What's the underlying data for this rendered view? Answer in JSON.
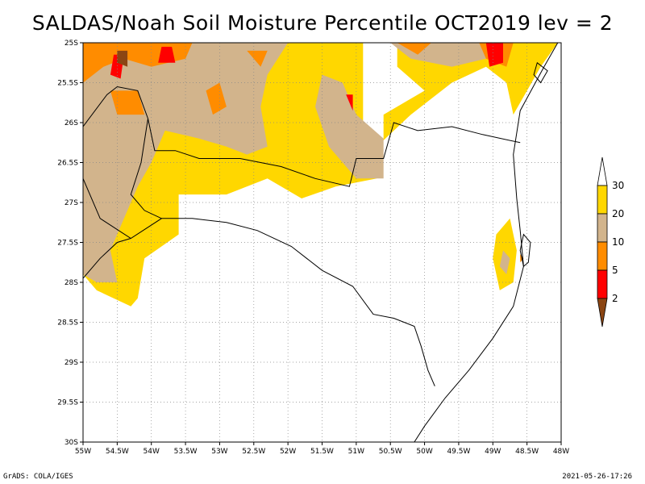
{
  "title": "SALDAS/Noah Soil Moisture Percentile OCT2019 lev = 2",
  "footer_left": "GrADS: COLA/IGES",
  "footer_right": "2021-05-26-17:26",
  "axes": {
    "lon_min": -55,
    "lon_max": -48,
    "lat_min": -30,
    "lat_max": -25,
    "x_ticks": [
      {
        "v": -55,
        "label": "55W"
      },
      {
        "v": -54.5,
        "label": "54.5W"
      },
      {
        "v": -54,
        "label": "54W"
      },
      {
        "v": -53.5,
        "label": "53.5W"
      },
      {
        "v": -53,
        "label": "53W"
      },
      {
        "v": -52.5,
        "label": "52.5W"
      },
      {
        "v": -52,
        "label": "52W"
      },
      {
        "v": -51.5,
        "label": "51.5W"
      },
      {
        "v": -51,
        "label": "51W"
      },
      {
        "v": -50.5,
        "label": "50.5W"
      },
      {
        "v": -50,
        "label": "50W"
      },
      {
        "v": -49.5,
        "label": "49.5W"
      },
      {
        "v": -49,
        "label": "49W"
      },
      {
        "v": -48.5,
        "label": "48.5W"
      },
      {
        "v": -48,
        "label": "48W"
      }
    ],
    "y_ticks": [
      {
        "v": -25,
        "label": "25S"
      },
      {
        "v": -25.5,
        "label": "25.5S"
      },
      {
        "v": -26,
        "label": "26S"
      },
      {
        "v": -26.5,
        "label": "26.5S"
      },
      {
        "v": -27,
        "label": "27S"
      },
      {
        "v": -27.5,
        "label": "27.5S"
      },
      {
        "v": -28,
        "label": "28S"
      },
      {
        "v": -28.5,
        "label": "28.5S"
      },
      {
        "v": -29,
        "label": "29S"
      },
      {
        "v": -29.5,
        "label": "29.5S"
      },
      {
        "v": -30,
        "label": "30S"
      }
    ],
    "grid": "dotted"
  },
  "legend": {
    "placement": "right",
    "bins": [
      {
        "label": "2",
        "color": "#8b4513"
      },
      {
        "label": "5",
        "color": "#ff0000"
      },
      {
        "label": "10",
        "color": "#ff8c00"
      },
      {
        "label": "20",
        "color": "#d2b48c"
      },
      {
        "label": "30",
        "color": "#ffd700"
      },
      {
        "label": "",
        "color": "#ffffff"
      }
    ]
  },
  "colors": {
    "p20_30": "#ffd700",
    "p10_20": "#d2b48c",
    "p5_10": "#ff8c00",
    "p2_5": "#ff0000",
    "lt2": "#8b4513",
    "boundary": "#000000"
  },
  "regions": [
    {
      "cls": "p20_30",
      "pts": [
        [
          -55,
          -25
        ],
        [
          -50.9,
          -25
        ],
        [
          -50.9,
          -26.2
        ],
        [
          -50.6,
          -26.2
        ],
        [
          -50.6,
          -25.9
        ],
        [
          -50,
          -25.6
        ],
        [
          -50.4,
          -25.3
        ],
        [
          -50.4,
          -25
        ],
        [
          -48.05,
          -25
        ],
        [
          -48.3,
          -25.3
        ],
        [
          -48.7,
          -25.9
        ],
        [
          -48.8,
          -25.5
        ],
        [
          -49.1,
          -25.3
        ],
        [
          -49.6,
          -25.5
        ],
        [
          -50.2,
          -25.9
        ],
        [
          -50.7,
          -26.3
        ],
        [
          -50.7,
          -26.7
        ],
        [
          -51.3,
          -26.8
        ],
        [
          -51.8,
          -26.95
        ],
        [
          -52.3,
          -26.7
        ],
        [
          -52.9,
          -26.9
        ],
        [
          -53.2,
          -26.9
        ],
        [
          -53.6,
          -26.9
        ],
        [
          -53.6,
          -27.4
        ],
        [
          -54.1,
          -27.7
        ],
        [
          -54.2,
          -28.2
        ],
        [
          -54.3,
          -28.3
        ],
        [
          -54.8,
          -28.1
        ],
        [
          -55,
          -27.9
        ]
      ]
    },
    {
      "cls": "p20_30",
      "pts": [
        [
          -48.95,
          -27.4
        ],
        [
          -48.75,
          -27.2
        ],
        [
          -48.65,
          -27.6
        ],
        [
          -48.7,
          -28
        ],
        [
          -48.9,
          -28.1
        ],
        [
          -49.0,
          -27.7
        ]
      ]
    },
    {
      "cls": "p10_20",
      "pts": [
        [
          -55,
          -25
        ],
        [
          -52.0,
          -25
        ],
        [
          -52.3,
          -25.4
        ],
        [
          -52.4,
          -25.8
        ],
        [
          -52.3,
          -26.3
        ],
        [
          -52.6,
          -26.4
        ],
        [
          -52.9,
          -26.3
        ],
        [
          -53.3,
          -26.2
        ],
        [
          -53.8,
          -26.1
        ],
        [
          -54.0,
          -26.5
        ],
        [
          -54.2,
          -26.8
        ],
        [
          -54.4,
          -27.2
        ],
        [
          -54.6,
          -27.6
        ],
        [
          -54.5,
          -28
        ],
        [
          -54.8,
          -28
        ],
        [
          -55,
          -27.9
        ]
      ]
    },
    {
      "cls": "p10_20",
      "pts": [
        [
          -51.5,
          -25.4
        ],
        [
          -51.2,
          -25.5
        ],
        [
          -51.0,
          -25.9
        ],
        [
          -50.6,
          -26.2
        ],
        [
          -50.6,
          -26.7
        ],
        [
          -51.0,
          -26.7
        ],
        [
          -51.4,
          -26.3
        ],
        [
          -51.6,
          -25.8
        ]
      ]
    },
    {
      "cls": "p10_20",
      "pts": [
        [
          -50.5,
          -25
        ],
        [
          -48.9,
          -25
        ],
        [
          -49.1,
          -25.2
        ],
        [
          -49.6,
          -25.3
        ],
        [
          -50.2,
          -25.2
        ]
      ]
    },
    {
      "cls": "p10_20",
      "pts": [
        [
          -48.85,
          -27.6
        ],
        [
          -48.75,
          -27.7
        ],
        [
          -48.8,
          -27.9
        ],
        [
          -48.9,
          -27.8
        ]
      ]
    },
    {
      "cls": "p5_10",
      "pts": [
        [
          -55,
          -25
        ],
        [
          -53.4,
          -25
        ],
        [
          -53.5,
          -25.2
        ],
        [
          -54.0,
          -25.3
        ],
        [
          -54.4,
          -25.2
        ],
        [
          -54.7,
          -25.3
        ],
        [
          -55,
          -25.5
        ]
      ]
    },
    {
      "cls": "p5_10",
      "pts": [
        [
          -54.6,
          -25.6
        ],
        [
          -54.2,
          -25.6
        ],
        [
          -54.1,
          -25.9
        ],
        [
          -54.5,
          -25.9
        ]
      ]
    },
    {
      "cls": "p5_10",
      "pts": [
        [
          -53.2,
          -25.6
        ],
        [
          -53.0,
          -25.5
        ],
        [
          -52.9,
          -25.8
        ],
        [
          -53.1,
          -25.9
        ]
      ]
    },
    {
      "cls": "p5_10",
      "pts": [
        [
          -52.6,
          -25.1
        ],
        [
          -52.3,
          -25.1
        ],
        [
          -52.4,
          -25.3
        ]
      ]
    },
    {
      "cls": "p5_10",
      "pts": [
        [
          -50.4,
          -25
        ],
        [
          -49.9,
          -25
        ],
        [
          -50.1,
          -25.15
        ]
      ]
    },
    {
      "cls": "p5_10",
      "pts": [
        [
          -49.2,
          -25
        ],
        [
          -48.7,
          -25
        ],
        [
          -48.8,
          -25.3
        ],
        [
          -49.1,
          -25.2
        ]
      ]
    },
    {
      "cls": "p5_10",
      "pts": [
        [
          -48.6,
          -27.65
        ],
        [
          -48.55,
          -27.7
        ],
        [
          -48.6,
          -27.75
        ]
      ]
    },
    {
      "cls": "p2_5",
      "pts": [
        [
          -53.85,
          -25.05
        ],
        [
          -53.7,
          -25.05
        ],
        [
          -53.65,
          -25.25
        ],
        [
          -53.9,
          -25.25
        ]
      ]
    },
    {
      "cls": "p2_5",
      "pts": [
        [
          -54.55,
          -25.15
        ],
        [
          -54.4,
          -25.15
        ],
        [
          -54.45,
          -25.45
        ],
        [
          -54.6,
          -25.4
        ]
      ]
    },
    {
      "cls": "p2_5",
      "pts": [
        [
          -49.1,
          -25.0
        ],
        [
          -48.85,
          -25.0
        ],
        [
          -48.85,
          -25.25
        ],
        [
          -49.05,
          -25.3
        ]
      ]
    },
    {
      "cls": "p2_5",
      "pts": [
        [
          -51.15,
          -25.65
        ],
        [
          -51.05,
          -25.65
        ],
        [
          -51.05,
          -25.85
        ]
      ]
    },
    {
      "cls": "lt2",
      "pts": [
        [
          -54.5,
          -25.1
        ],
        [
          -54.35,
          -25.1
        ],
        [
          -54.35,
          -25.3
        ],
        [
          -54.5,
          -25.25
        ]
      ]
    }
  ],
  "boundaries": [
    {
      "kind": "border",
      "pts": [
        [
          -55,
          -26.05
        ],
        [
          -54.65,
          -25.65
        ],
        [
          -54.5,
          -25.55
        ],
        [
          -54.2,
          -25.6
        ],
        [
          -54.05,
          -25.95
        ],
        [
          -53.95,
          -26.35
        ],
        [
          -53.65,
          -26.35
        ],
        [
          -53.3,
          -26.45
        ],
        [
          -52.7,
          -26.45
        ],
        [
          -52.1,
          -26.55
        ],
        [
          -51.6,
          -26.7
        ],
        [
          -51.1,
          -26.8
        ],
        [
          -51.0,
          -26.45
        ],
        [
          -50.6,
          -26.45
        ],
        [
          -50.45,
          -26.0
        ],
        [
          -50.1,
          -26.1
        ],
        [
          -49.6,
          -26.05
        ],
        [
          -49.15,
          -26.15
        ],
        [
          -48.6,
          -26.25
        ]
      ]
    },
    {
      "kind": "border",
      "pts": [
        [
          -55,
          -26.7
        ],
        [
          -54.75,
          -27.2
        ],
        [
          -54.3,
          -27.45
        ],
        [
          -53.85,
          -27.2
        ],
        [
          -53.4,
          -27.2
        ],
        [
          -52.9,
          -27.25
        ],
        [
          -52.45,
          -27.35
        ],
        [
          -51.95,
          -27.55
        ],
        [
          -51.5,
          -27.85
        ],
        [
          -51.05,
          -28.05
        ],
        [
          -50.75,
          -28.4
        ],
        [
          -50.45,
          -28.45
        ],
        [
          -50.15,
          -28.55
        ],
        [
          -50.05,
          -28.8
        ],
        [
          -49.95,
          -29.1
        ],
        [
          -49.85,
          -29.3
        ]
      ]
    },
    {
      "kind": "border",
      "pts": [
        [
          -54.05,
          -25.95
        ],
        [
          -54.15,
          -26.5
        ],
        [
          -54.3,
          -26.9
        ],
        [
          -54.1,
          -27.1
        ],
        [
          -53.85,
          -27.2
        ]
      ]
    },
    {
      "kind": "border",
      "pts": [
        [
          -55,
          -27.95
        ],
        [
          -54.75,
          -27.7
        ],
        [
          -54.5,
          -27.5
        ],
        [
          -54.3,
          -27.45
        ]
      ]
    },
    {
      "kind": "coast",
      "pts": [
        [
          -48.05,
          -25.0
        ],
        [
          -48.25,
          -25.3
        ],
        [
          -48.6,
          -25.85
        ],
        [
          -48.7,
          -26.4
        ],
        [
          -48.65,
          -26.95
        ],
        [
          -48.6,
          -27.35
        ],
        [
          -48.55,
          -27.8
        ],
        [
          -48.7,
          -28.3
        ],
        [
          -49.0,
          -28.7
        ],
        [
          -49.35,
          -29.1
        ],
        [
          -49.7,
          -29.45
        ],
        [
          -50.0,
          -29.8
        ],
        [
          -50.15,
          -30.0
        ]
      ]
    },
    {
      "kind": "island",
      "pts": [
        [
          -48.55,
          -27.4
        ],
        [
          -48.45,
          -27.5
        ],
        [
          -48.48,
          -27.75
        ],
        [
          -48.55,
          -27.8
        ],
        [
          -48.6,
          -27.6
        ]
      ]
    },
    {
      "kind": "island",
      "pts": [
        [
          -48.35,
          -25.25
        ],
        [
          -48.2,
          -25.35
        ],
        [
          -48.3,
          -25.5
        ],
        [
          -48.4,
          -25.4
        ]
      ]
    }
  ]
}
